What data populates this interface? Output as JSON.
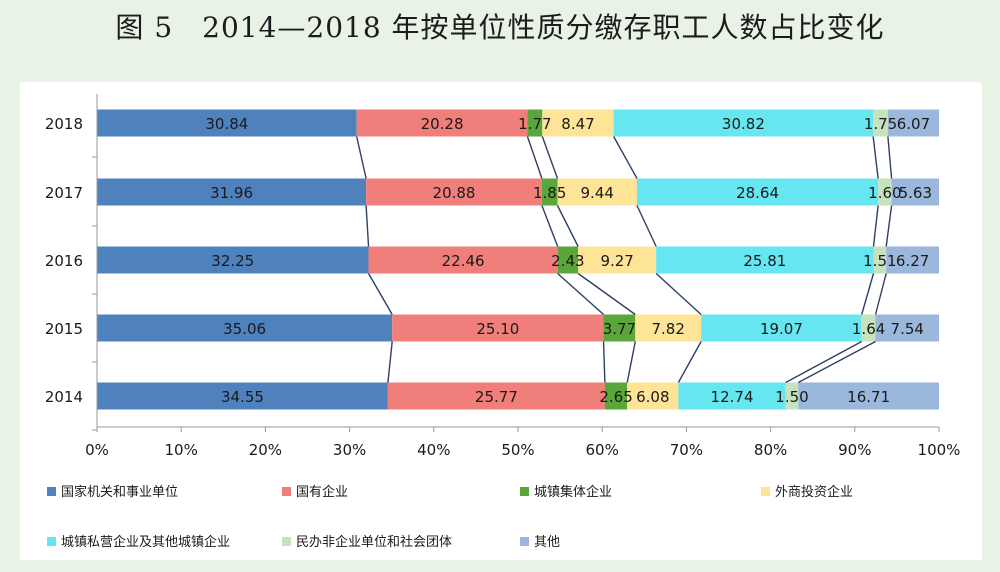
{
  "title": "图 5　2014—2018 年按单位性质分缴存职工人数占比变化",
  "chart_data": {
    "type": "bar",
    "orientation": "horizontal",
    "stacked": "percent",
    "categories": [
      "2018",
      "2017",
      "2016",
      "2015",
      "2014"
    ],
    "xlim": [
      0,
      100
    ],
    "x_ticks": [
      "0%",
      "10%",
      "20%",
      "30%",
      "40%",
      "50%",
      "60%",
      "70%",
      "80%",
      "90%",
      "100%"
    ],
    "grid": false,
    "legend_position": "bottom",
    "series_connectors": true,
    "series": [
      {
        "name": "国家机关和事业单位",
        "color": "#4f81bd",
        "values": [
          30.84,
          31.96,
          32.25,
          35.06,
          34.55
        ]
      },
      {
        "name": "国有企业",
        "color": "#f07e7b",
        "values": [
          20.28,
          20.88,
          22.46,
          25.1,
          25.77
        ]
      },
      {
        "name": "城镇集体企业",
        "color": "#5aa63a",
        "values": [
          1.77,
          1.85,
          2.43,
          3.77,
          2.65
        ]
      },
      {
        "name": "外商投资企业",
        "color": "#fde496",
        "values": [
          8.47,
          9.44,
          9.27,
          7.82,
          6.08
        ]
      },
      {
        "name": "城镇私营企业及其他城镇企业",
        "color": "#66e6f0",
        "values": [
          30.82,
          28.64,
          25.81,
          19.07,
          12.74
        ]
      },
      {
        "name": "民办非企业单位和社会团体",
        "color": "#c6e3be",
        "values": [
          1.75,
          1.6,
          1.51,
          1.64,
          1.5
        ]
      },
      {
        "name": "其他",
        "color": "#9bb7dc",
        "values": [
          6.07,
          5.63,
          6.27,
          7.54,
          16.71
        ]
      }
    ],
    "data_labels": [
      [
        "30.84",
        "31.96",
        "32.25",
        "35.06",
        "34.55"
      ],
      [
        "20.28",
        "20.88",
        "22.46",
        "25.10",
        "25.77"
      ],
      [
        "1.77",
        "1.85",
        "2.43",
        "3.77",
        "2.65"
      ],
      [
        "8.47",
        "9.44",
        "9.27",
        "7.82",
        "6.08"
      ],
      [
        "30.82",
        "28.64",
        "25.81",
        "19.07",
        "12.74"
      ],
      [
        "1.75",
        "1.60",
        "1.51",
        "1.64",
        "1.50"
      ],
      [
        "6.07",
        "5.63",
        "6.27",
        "7.54",
        "16.71"
      ]
    ]
  }
}
